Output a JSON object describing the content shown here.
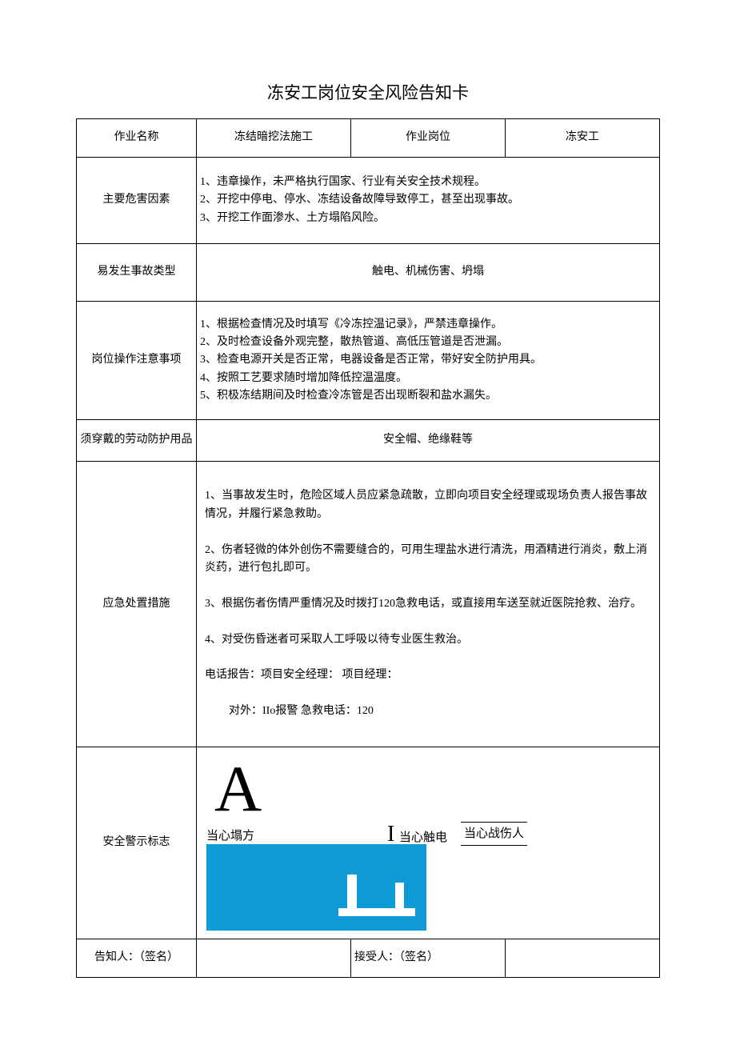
{
  "title": "冻安工岗位安全风险告知卡",
  "row1": {
    "label1": "作业名称",
    "value1": "冻结暗挖法施工",
    "label2": "作业岗位",
    "value2": "冻安工"
  },
  "hazards": {
    "label": "主要危害因素",
    "content": "1、违章操作，未严格执行国家、行业有关安全技术规程。\n2、开挖中停电、停水、冻结设备故障导致停工，甚至出现事故。\n3、开挖工作面渗水、土方塌陷风险。"
  },
  "accident": {
    "label": "易发生事故类型",
    "content": "触电、机械伤害、坍塌"
  },
  "precautions": {
    "label": "岗位操作注意事项",
    "content": "1、根据检查情况及时填写《冷冻控温记录》，严禁违章操作。\n2、及时检查设备外观完整，散热管道、高低压管道是否泄漏。\n3、检查电源开关是否正常，电器设备是否正常，带好安全防护用具。\n4、按照工艺要求随时增加降低控温温度。\n5、积极冻结期间及时检查冷冻管是否出现断裂和盐水漏失。"
  },
  "ppe": {
    "label": "须穿戴的劳动防护用品",
    "content": "安全帽、绝缘鞋等"
  },
  "emergency": {
    "label": "应急处置措施",
    "line1": "1、当事故发生时，危险区域人员应紧急疏散，立即向项目安全经理或现场负责人报告事故情况，并履行紧急救助。",
    "line2": "2、伤者轻微的体外创伤不需要缝合的，可用生理盐水进行清洗，用酒精进行消炎，敷上消炎药，进行包扎即可。",
    "line3": "3、根据伤者伤情严重情况及时拨打120急救电话，或直接用车送至就近医院抢救、治疗。",
    "line4": "4、对受伤昏迷者可采取人工呼吸以待专业医生救治。",
    "phone1": "电话报告：项目安全经理：                    项目经理：",
    "phone2": "对外：IIo报警                         急救电话：120"
  },
  "signs": {
    "label": "安全警示标志",
    "triangle_glyph": "A",
    "sign1": "当心塌方",
    "i_glyph": "I",
    "sign2": "当心触电",
    "sign3": "当心战伤人",
    "blue_color": "#0f9bd7"
  },
  "signoff": {
    "label1": "告知人：（签名）",
    "label2": "接受人：（签名）"
  }
}
